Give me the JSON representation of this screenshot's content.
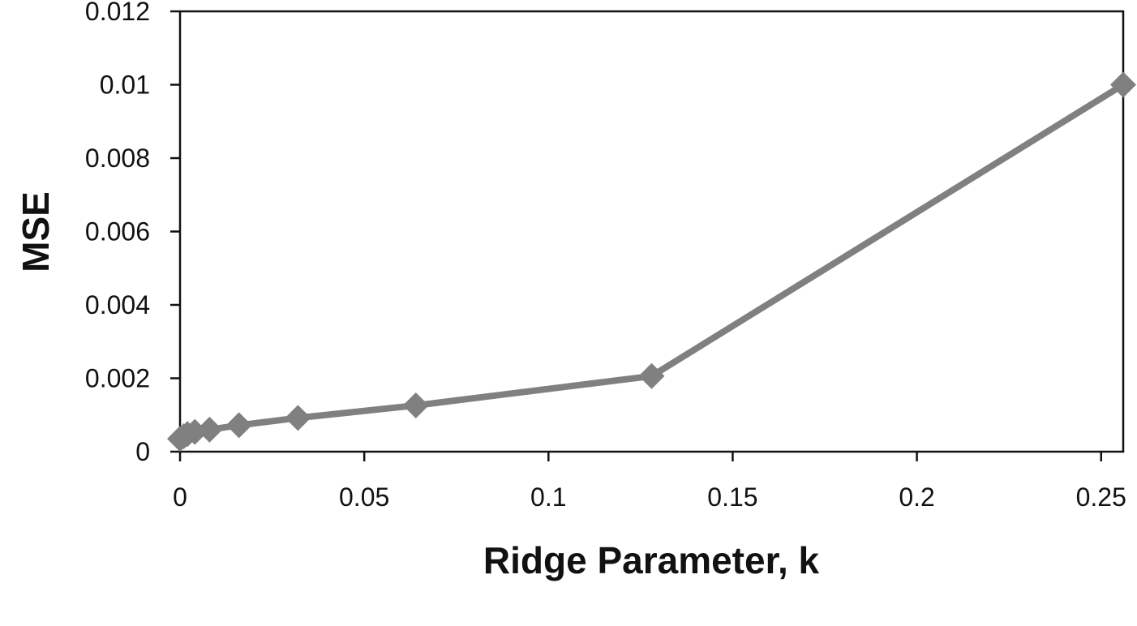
{
  "chart_data": {
    "type": "line",
    "title": "",
    "xlabel": "Ridge Parameter, k",
    "ylabel": "MSE",
    "xlim": [
      0,
      0.256
    ],
    "ylim": [
      0,
      0.012
    ],
    "x_ticks": [
      0,
      0.05,
      0.1,
      0.15,
      0.2,
      0.25
    ],
    "x_tick_labels": [
      "0",
      "0.05",
      "0.1",
      "0.15",
      "0.2",
      "0.25"
    ],
    "y_ticks": [
      0,
      0.002,
      0.004,
      0.006,
      0.008,
      0.01,
      0.012
    ],
    "y_tick_labels": [
      "0",
      "0.002",
      "0.004",
      "0.006",
      "0.008",
      "0.01",
      "0.012"
    ],
    "grid": false,
    "legend": "none",
    "series": [
      {
        "color": "#808080",
        "marker": "diamond",
        "x": [
          0,
          0.001,
          0.002,
          0.004,
          0.008,
          0.016,
          0.032,
          0.064,
          0.128,
          0.256
        ],
        "y": [
          0.00035,
          0.00042,
          0.00048,
          0.00054,
          0.0006,
          0.00072,
          0.00092,
          0.00126,
          0.00206,
          0.01
        ]
      }
    ]
  }
}
